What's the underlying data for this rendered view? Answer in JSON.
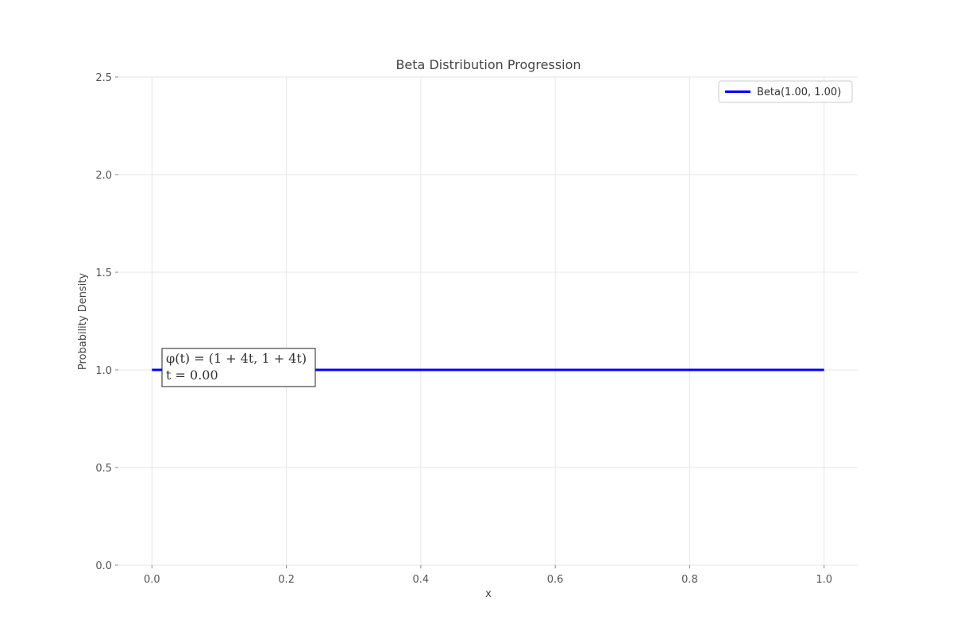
{
  "chart_data": {
    "type": "line",
    "title": "Beta Distribution Progression",
    "xlabel": "x",
    "ylabel": "Probability Density",
    "xlim": [
      -0.05,
      1.05
    ],
    "ylim": [
      0,
      2.5
    ],
    "xticks": [
      "0.0",
      "0.2",
      "0.4",
      "0.6",
      "0.8",
      "1.0"
    ],
    "yticks": [
      "0.0",
      "0.5",
      "1.0",
      "1.5",
      "2.0",
      "2.5"
    ],
    "grid": true,
    "legend_position": "top-right",
    "series": [
      {
        "name": "Beta(1.00, 1.00)",
        "color": "#0000ff",
        "x": [
          0,
          1
        ],
        "y": [
          1,
          1
        ]
      }
    ],
    "annotation": {
      "line1": "φ(t) = (1 + 4t, 1 + 4t)",
      "line2": "t = 0.00"
    }
  }
}
